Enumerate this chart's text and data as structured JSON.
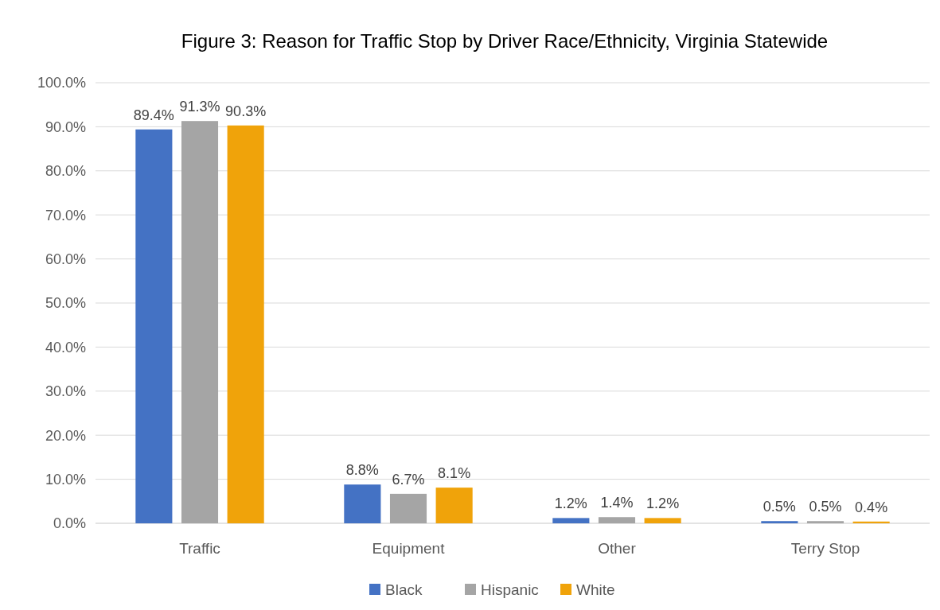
{
  "chart_data": {
    "type": "bar",
    "title": "Figure 3: Reason for Traffic Stop by Driver Race/Ethnicity, Virginia Statewide",
    "categories": [
      "Traffic",
      "Equipment",
      "Other",
      "Terry Stop"
    ],
    "series": [
      {
        "name": "Black",
        "color": "#4472c4",
        "values": [
          89.4,
          8.8,
          1.2,
          0.5
        ],
        "value_labels": [
          "89.4%",
          "8.8%",
          "1.2%",
          "0.5%"
        ]
      },
      {
        "name": "Hispanic",
        "color": "#a5a5a5",
        "values": [
          91.3,
          6.7,
          1.4,
          0.5
        ],
        "value_labels": [
          "91.3%",
          "6.7%",
          "1.4%",
          "0.5%"
        ]
      },
      {
        "name": "White",
        "color": "#f0a30a",
        "values": [
          90.3,
          8.1,
          1.2,
          0.4
        ],
        "value_labels": [
          "90.3%",
          "8.1%",
          "1.2%",
          "0.4%"
        ]
      }
    ],
    "ylim": [
      0,
      100
    ],
    "yticks": [
      {
        "value": 0,
        "label": "0.0%"
      },
      {
        "value": 10,
        "label": "10.0%"
      },
      {
        "value": 20,
        "label": "20.0%"
      },
      {
        "value": 30,
        "label": "30.0%"
      },
      {
        "value": 40,
        "label": "40.0%"
      },
      {
        "value": 50,
        "label": "50.0%"
      },
      {
        "value": 60,
        "label": "60.0%"
      },
      {
        "value": 70,
        "label": "70.0%"
      },
      {
        "value": 80,
        "label": "80.0%"
      },
      {
        "value": 90,
        "label": "90.0%"
      },
      {
        "value": 100,
        "label": "100.0%"
      }
    ],
    "grid": "y",
    "legend": "bottom"
  }
}
